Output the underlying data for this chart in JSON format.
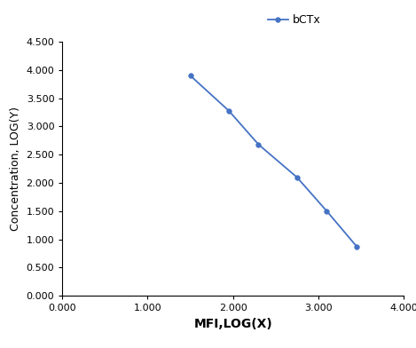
{
  "x": [
    1.5,
    1.95,
    2.3,
    2.75,
    3.1,
    3.45
  ],
  "y": [
    3.9,
    3.28,
    2.68,
    2.1,
    1.5,
    0.875
  ],
  "line_color": "#4472C4",
  "marker_color": "#4472C4",
  "marker_style": "o",
  "marker_size": 4,
  "line_width": 1.3,
  "xlabel": "MFI,LOG(X)",
  "ylabel": "Concentration, LOG(Y)",
  "xlim": [
    0.0,
    4.0
  ],
  "ylim": [
    0.0,
    4.5
  ],
  "xticks": [
    0.0,
    1.0,
    2.0,
    3.0,
    4.0
  ],
  "yticks": [
    0.0,
    0.5,
    1.0,
    1.5,
    2.0,
    2.5,
    3.0,
    3.5,
    4.0,
    4.5
  ],
  "legend_label": "bCTx",
  "background_color": "#ffffff",
  "tick_fontsize": 8,
  "xlabel_fontsize": 10,
  "ylabel_fontsize": 9
}
